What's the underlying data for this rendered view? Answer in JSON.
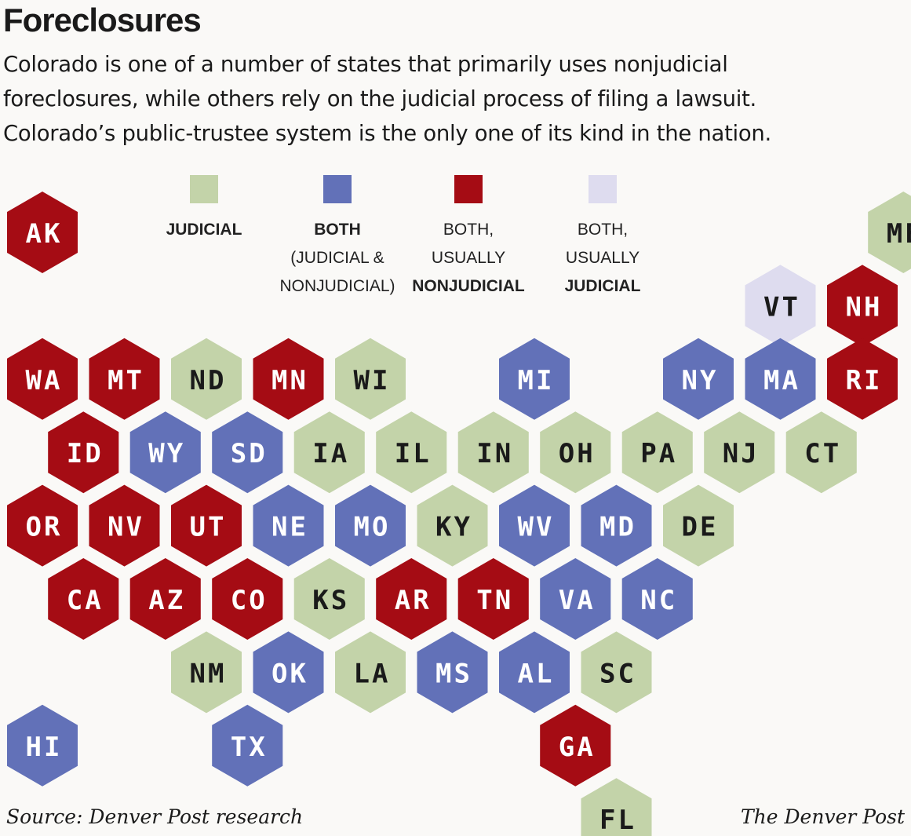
{
  "title": "Foreclosures",
  "subtitle": [
    "Colorado is one of a number of states that primarily uses nonjudicial",
    "foreclosures, while others rely on the judicial process of filing a lawsuit.",
    "Colorado’s public-trustee system is the only one of its kind in the nation."
  ],
  "legend": [
    {
      "key": "judicial",
      "color": "#c3d3a9",
      "lines": [
        {
          "text": "JUDICIAL",
          "strong": true
        }
      ]
    },
    {
      "key": "both",
      "color": "#6271b8",
      "lines": [
        {
          "text": "BOTH",
          "strong": true
        },
        {
          "text": "(JUDICIAL &",
          "strong": false
        },
        {
          "text": "NONJUDICIAL)",
          "strong": false
        }
      ]
    },
    {
      "key": "nonjudicial",
      "color": "#a50c14",
      "lines": [
        {
          "text": "BOTH,",
          "strong": false
        },
        {
          "text": "USUALLY",
          "strong": false
        },
        {
          "text": "NONJUDICIAL",
          "strong": true
        }
      ]
    },
    {
      "key": "usually_judicial",
      "color": "#dedcef",
      "lines": [
        {
          "text": "BOTH,",
          "strong": false
        },
        {
          "text": "USUALLY",
          "strong": false
        },
        {
          "text": "JUDICIAL",
          "strong": true
        }
      ]
    }
  ],
  "categories": {
    "judicial": {
      "fill": "#c3d3a9",
      "text": "#1a1a1a"
    },
    "both": {
      "fill": "#6271b8",
      "text": "#ffffff"
    },
    "nonjudicial": {
      "fill": "#a50c14",
      "text": "#ffffff"
    },
    "usually_judicial": {
      "fill": "#dedcef",
      "text": "#1a1a1a"
    }
  },
  "states": [
    {
      "abbr": "AK",
      "row": 0,
      "col": 0,
      "cat": "nonjudicial"
    },
    {
      "abbr": "ME",
      "row": 0,
      "col": 10.5,
      "cat": "judicial"
    },
    {
      "abbr": "VT",
      "row": 1,
      "col": 9,
      "cat": "usually_judicial"
    },
    {
      "abbr": "NH",
      "row": 1,
      "col": 10,
      "cat": "nonjudicial"
    },
    {
      "abbr": "WA",
      "row": 2,
      "col": 0,
      "cat": "nonjudicial"
    },
    {
      "abbr": "MT",
      "row": 2,
      "col": 1,
      "cat": "nonjudicial"
    },
    {
      "abbr": "ND",
      "row": 2,
      "col": 2,
      "cat": "judicial"
    },
    {
      "abbr": "MN",
      "row": 2,
      "col": 3,
      "cat": "nonjudicial"
    },
    {
      "abbr": "WI",
      "row": 2,
      "col": 4,
      "cat": "judicial"
    },
    {
      "abbr": "MI",
      "row": 2,
      "col": 6,
      "cat": "both"
    },
    {
      "abbr": "NY",
      "row": 2,
      "col": 8,
      "cat": "both"
    },
    {
      "abbr": "MA",
      "row": 2,
      "col": 9,
      "cat": "both"
    },
    {
      "abbr": "RI",
      "row": 2,
      "col": 10,
      "cat": "nonjudicial"
    },
    {
      "abbr": "ID",
      "row": 3,
      "col": 0.5,
      "cat": "nonjudicial"
    },
    {
      "abbr": "WY",
      "row": 3,
      "col": 1.5,
      "cat": "both"
    },
    {
      "abbr": "SD",
      "row": 3,
      "col": 2.5,
      "cat": "both"
    },
    {
      "abbr": "IA",
      "row": 3,
      "col": 3.5,
      "cat": "judicial"
    },
    {
      "abbr": "IL",
      "row": 3,
      "col": 4.5,
      "cat": "judicial"
    },
    {
      "abbr": "IN",
      "row": 3,
      "col": 5.5,
      "cat": "judicial"
    },
    {
      "abbr": "OH",
      "row": 3,
      "col": 6.5,
      "cat": "judicial"
    },
    {
      "abbr": "PA",
      "row": 3,
      "col": 7.5,
      "cat": "judicial"
    },
    {
      "abbr": "NJ",
      "row": 3,
      "col": 8.5,
      "cat": "judicial"
    },
    {
      "abbr": "CT",
      "row": 3,
      "col": 9.5,
      "cat": "judicial"
    },
    {
      "abbr": "OR",
      "row": 4,
      "col": 0,
      "cat": "nonjudicial"
    },
    {
      "abbr": "NV",
      "row": 4,
      "col": 1,
      "cat": "nonjudicial"
    },
    {
      "abbr": "UT",
      "row": 4,
      "col": 2,
      "cat": "nonjudicial"
    },
    {
      "abbr": "NE",
      "row": 4,
      "col": 3,
      "cat": "both"
    },
    {
      "abbr": "MO",
      "row": 4,
      "col": 4,
      "cat": "both"
    },
    {
      "abbr": "KY",
      "row": 4,
      "col": 5,
      "cat": "judicial"
    },
    {
      "abbr": "WV",
      "row": 4,
      "col": 6,
      "cat": "both"
    },
    {
      "abbr": "MD",
      "row": 4,
      "col": 7,
      "cat": "both"
    },
    {
      "abbr": "DE",
      "row": 4,
      "col": 8,
      "cat": "judicial"
    },
    {
      "abbr": "CA",
      "row": 5,
      "col": 0.5,
      "cat": "nonjudicial"
    },
    {
      "abbr": "AZ",
      "row": 5,
      "col": 1.5,
      "cat": "nonjudicial"
    },
    {
      "abbr": "CO",
      "row": 5,
      "col": 2.5,
      "cat": "nonjudicial"
    },
    {
      "abbr": "KS",
      "row": 5,
      "col": 3.5,
      "cat": "judicial"
    },
    {
      "abbr": "AR",
      "row": 5,
      "col": 4.5,
      "cat": "nonjudicial"
    },
    {
      "abbr": "TN",
      "row": 5,
      "col": 5.5,
      "cat": "nonjudicial"
    },
    {
      "abbr": "VA",
      "row": 5,
      "col": 6.5,
      "cat": "both"
    },
    {
      "abbr": "NC",
      "row": 5,
      "col": 7.5,
      "cat": "both"
    },
    {
      "abbr": "NM",
      "row": 6,
      "col": 2,
      "cat": "judicial"
    },
    {
      "abbr": "OK",
      "row": 6,
      "col": 3,
      "cat": "both"
    },
    {
      "abbr": "LA",
      "row": 6,
      "col": 4,
      "cat": "judicial"
    },
    {
      "abbr": "MS",
      "row": 6,
      "col": 5,
      "cat": "both"
    },
    {
      "abbr": "AL",
      "row": 6,
      "col": 6,
      "cat": "both"
    },
    {
      "abbr": "SC",
      "row": 6,
      "col": 7,
      "cat": "judicial"
    },
    {
      "abbr": "HI",
      "row": 7,
      "col": 0,
      "cat": "both"
    },
    {
      "abbr": "TX",
      "row": 7,
      "col": 2.5,
      "cat": "both"
    },
    {
      "abbr": "GA",
      "row": 7,
      "col": 6.5,
      "cat": "nonjudicial"
    },
    {
      "abbr": "FL",
      "row": 8,
      "col": 7,
      "cat": "judicial"
    }
  ],
  "source": "Source: Denver Post research",
  "credit": "The Denver Post"
}
